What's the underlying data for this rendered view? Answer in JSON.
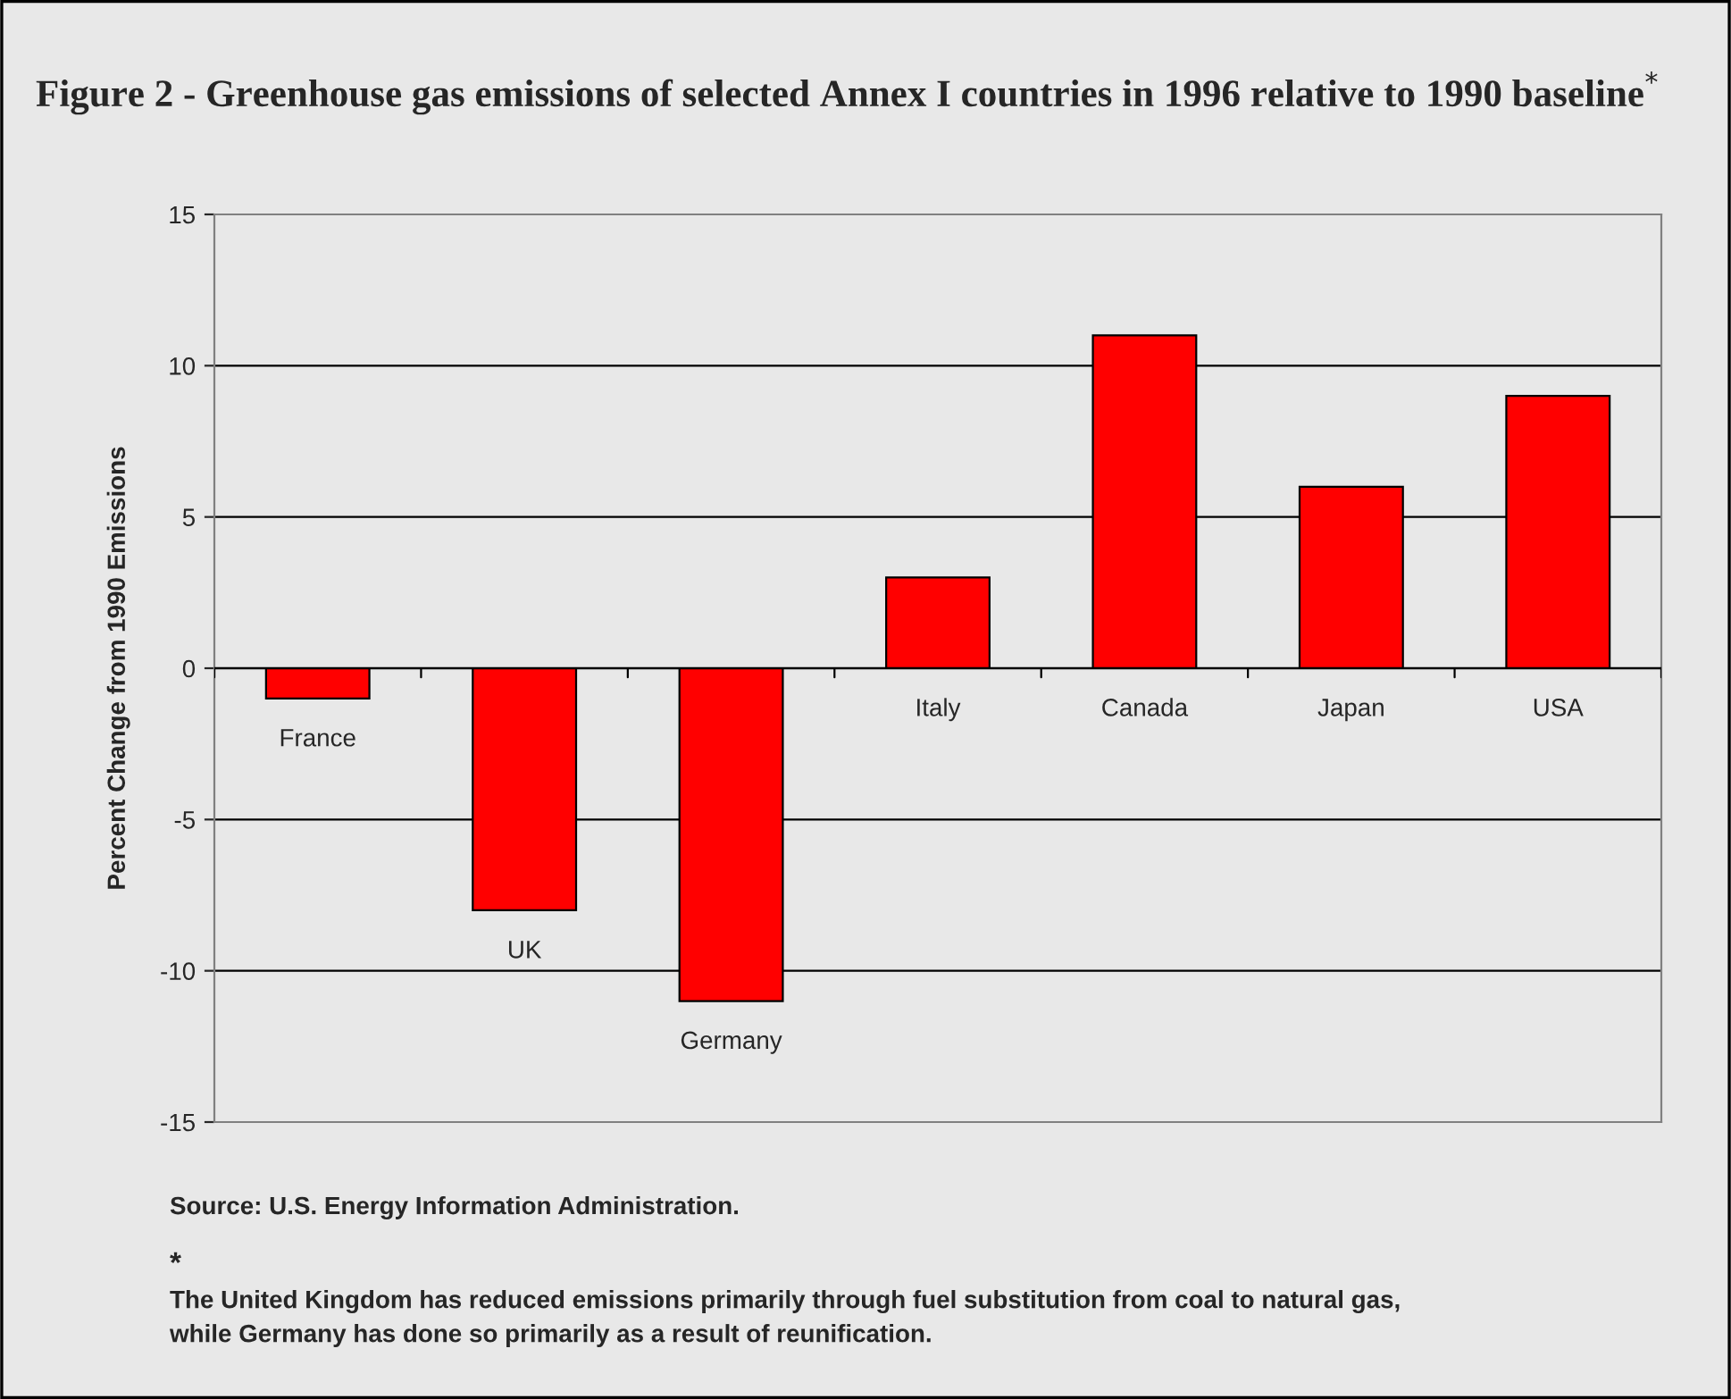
{
  "chart_data": {
    "type": "bar",
    "title": "Figure 2 - Greenhouse gas emissions of selected Annex I countries in 1996 relative to 1990 baseline$^{*}$",
    "ylabel": "Percent Change from 1990 Emissions",
    "categories": [
      "France",
      "UK",
      "Germany",
      "Italy",
      "Canada",
      "Japan",
      "USA"
    ],
    "values": [
      -1,
      -8,
      -11,
      3,
      11,
      6,
      9
    ],
    "color": "#ff0000",
    "ylim": [
      -15,
      15
    ],
    "yticks": [
      -15,
      -10,
      -5,
      0,
      5,
      10,
      15
    ],
    "grid": "y",
    "annotations": [
      "Source: U.S. Energy Information Administration.",
      "*",
      "The United Kingdom has reduced emissions primarily through fuel substitution from coal to natural gas,\nwhile Germany has done so primarily as a result of reunification."
    ]
  }
}
